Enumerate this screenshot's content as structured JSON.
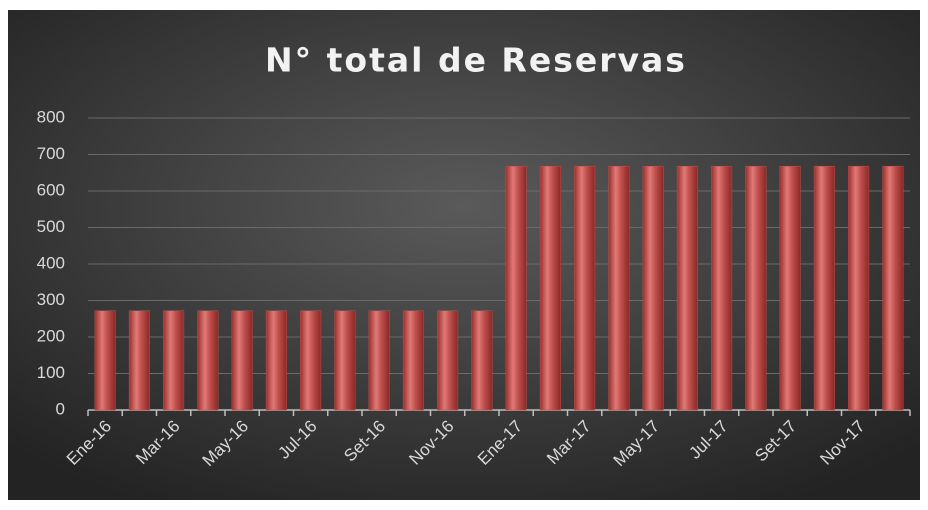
{
  "chart_data": {
    "type": "bar",
    "title": "N° total de Reservas",
    "categories": [
      "Ene-16",
      null,
      "Mar-16",
      null,
      "May-16",
      null,
      "Jul-16",
      null,
      "Set-16",
      null,
      "Nov-16",
      null,
      "Ene-17",
      null,
      "Mar-17",
      null,
      "May-17",
      null,
      "Jul-17",
      null,
      "Set-17",
      null,
      "Nov-17",
      null
    ],
    "values": [
      272,
      272,
      272,
      272,
      272,
      272,
      272,
      272,
      272,
      272,
      272,
      272,
      668,
      668,
      668,
      668,
      668,
      668,
      668,
      668,
      668,
      668,
      668,
      668
    ],
    "color": "#c0504d",
    "ylim": [
      0,
      800
    ],
    "yticks": [
      0,
      100,
      200,
      300,
      400,
      500,
      600,
      700,
      800
    ],
    "grid": true
  }
}
